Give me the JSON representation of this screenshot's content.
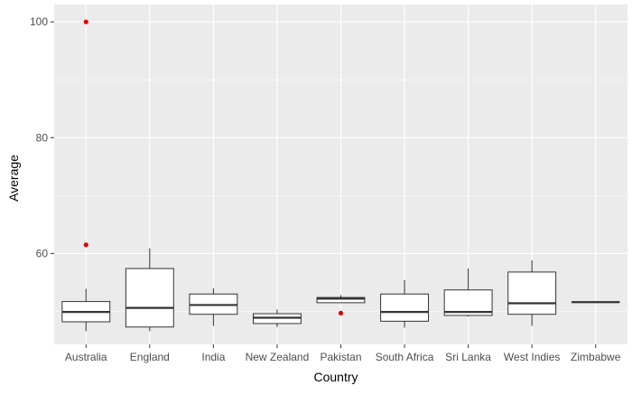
{
  "chart_data": {
    "type": "box",
    "xlabel": "Country",
    "ylabel": "Average",
    "ylim": [
      44.3,
      103
    ],
    "yticks": [
      60,
      80,
      100
    ],
    "grid": true,
    "colors": {
      "panel": "#EBEBEB",
      "grid": "#FFFFFF",
      "box_fill": "#FFFFFF",
      "box_stroke": "#333333",
      "outlier": "#E00000"
    },
    "categories": [
      "Australia",
      "England",
      "India",
      "New Zealand",
      "Pakistan",
      "South Africa",
      "Sri Lanka",
      "West Indies",
      "Zimbabwe"
    ],
    "boxes": [
      {
        "category": "Australia",
        "whisker_low": 46.6,
        "q1": 48.2,
        "median": 49.9,
        "q3": 51.7,
        "whisker_high": 53.9,
        "outliers": [
          61.5,
          100
        ]
      },
      {
        "category": "England",
        "whisker_low": 46.6,
        "q1": 47.3,
        "median": 50.6,
        "q3": 57.4,
        "whisker_high": 60.9,
        "outliers": []
      },
      {
        "category": "India",
        "whisker_low": 47.5,
        "q1": 49.5,
        "median": 51.1,
        "q3": 53.0,
        "whisker_high": 54.0,
        "outliers": []
      },
      {
        "category": "New Zealand",
        "whisker_low": 47.3,
        "q1": 47.9,
        "median": 48.9,
        "q3": 49.6,
        "whisker_high": 50.3,
        "outliers": []
      },
      {
        "category": "Pakistan",
        "whisker_low": 51.5,
        "q1": 51.5,
        "median": 52.2,
        "q3": 52.4,
        "whisker_high": 52.8,
        "outliers": [
          49.7
        ]
      },
      {
        "category": "South Africa",
        "whisker_low": 47.2,
        "q1": 48.3,
        "median": 49.9,
        "q3": 53.0,
        "whisker_high": 55.4,
        "outliers": []
      },
      {
        "category": "Sri Lanka",
        "whisker_low": 49.1,
        "q1": 49.3,
        "median": 49.9,
        "q3": 53.7,
        "whisker_high": 57.4,
        "outliers": []
      },
      {
        "category": "West Indies",
        "whisker_low": 47.5,
        "q1": 49.5,
        "median": 51.4,
        "q3": 56.8,
        "whisker_high": 58.8,
        "outliers": []
      },
      {
        "category": "Zimbabwe",
        "whisker_low": 51.6,
        "q1": 51.6,
        "median": 51.6,
        "q3": 51.6,
        "whisker_high": 51.6,
        "outliers": []
      }
    ]
  }
}
